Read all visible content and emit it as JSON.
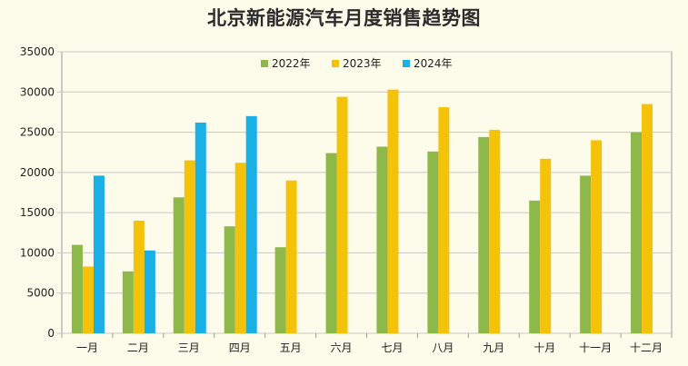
{
  "colors": {
    "background": "#fdfbea",
    "grid": "#c8c8c8",
    "axis": "#9a9a9a",
    "series_2022": "#8fb84a",
    "series_2023": "#f5c20a",
    "series_2024": "#1ab0e6"
  },
  "chart_data": {
    "type": "bar",
    "title": "北京新能源汽车月度销售趋势图",
    "xlabel": "",
    "ylabel": "",
    "ylim": [
      0,
      35000
    ],
    "yticks": [
      "0",
      "5000",
      "10000",
      "15000",
      "20000",
      "25000",
      "30000",
      "35000"
    ],
    "grid": true,
    "legend_position": "top-center",
    "categories": [
      "一月",
      "二月",
      "三月",
      "四月",
      "五月",
      "六月",
      "七月",
      "八月",
      "九月",
      "十月",
      "十一月",
      "十二月"
    ],
    "series": [
      {
        "name": "2022年",
        "values": [
          11000,
          7700,
          16900,
          13300,
          10700,
          22400,
          23200,
          22600,
          24400,
          16500,
          19600,
          25000
        ]
      },
      {
        "name": "2023年",
        "values": [
          8300,
          14000,
          21500,
          21200,
          19000,
          29400,
          30300,
          28100,
          25300,
          21700,
          24000,
          28500
        ]
      },
      {
        "name": "2024年",
        "values": [
          19600,
          10300,
          26200,
          27000,
          null,
          null,
          null,
          null,
          null,
          null,
          null,
          null
        ]
      }
    ]
  }
}
